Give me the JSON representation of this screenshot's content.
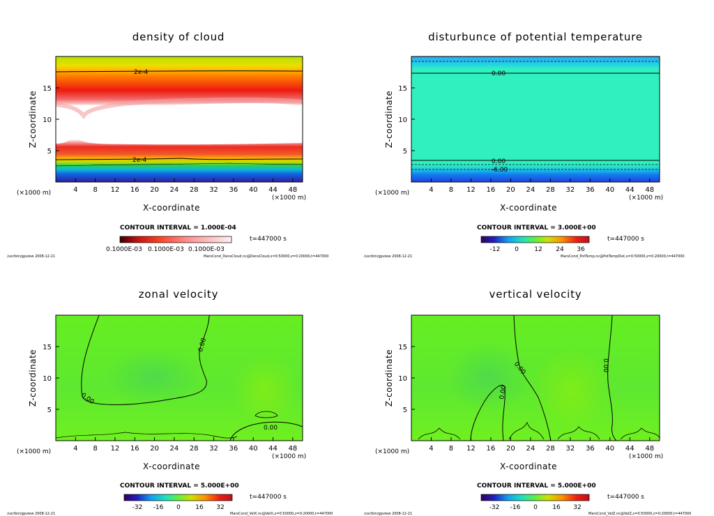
{
  "chart_data": [
    {
      "type": "heatmap",
      "title": "density of cloud",
      "xlabel": "X-coordinate",
      "ylabel": "Z-coordinate",
      "x_unit": "(×1000 m)",
      "x_ticks": [
        4,
        8,
        12,
        16,
        20,
        24,
        28,
        32,
        36,
        40,
        44,
        48
      ],
      "y_ticks": [
        5,
        10,
        15
      ],
      "xlim": [
        0,
        50
      ],
      "ylim": [
        0,
        20
      ],
      "contour_interval": "CONTOUR INTERVAL = 1.000E-04",
      "contour_labels": [
        "2e-4",
        "2e-4"
      ],
      "colorbar_ticks": "0.1000E-03",
      "time_label": "t=447000 s",
      "footer_left": "/usr/bin/gpview  2008-12-21",
      "footer_right": "MarsCond_DensCloud.nc@DensCloud,x=0:50000,z=0:20000,t=447000"
    },
    {
      "type": "heatmap",
      "title": "disturbunce of potential temperature",
      "xlabel": "X-coordinate",
      "ylabel": "Z-coordinate",
      "x_unit": "(×1000 m)",
      "x_ticks": [
        4,
        8,
        12,
        16,
        20,
        24,
        28,
        32,
        36,
        40,
        44,
        48
      ],
      "y_ticks": [
        5,
        10,
        15
      ],
      "xlim": [
        0,
        50
      ],
      "ylim": [
        0,
        20
      ],
      "contour_interval": "CONTOUR INTERVAL = 3.000E+00",
      "contour_labels": [
        "0.00",
        "0.00",
        "-6.00"
      ],
      "colorbar_ticks": [
        -12,
        0,
        12,
        24,
        36
      ],
      "time_label": "t=447000 s",
      "footer_left": "/usr/bin/gpview  2008-12-21",
      "footer_right": "MarsCond_PotTemp.nc@PotTempDist,x=0:50000,z=0:20000,t=447000"
    },
    {
      "type": "heatmap",
      "title": "zonal velocity",
      "xlabel": "X-coordinate",
      "ylabel": "Z-coordinate",
      "x_unit": "(×1000 m)",
      "x_ticks": [
        4,
        8,
        12,
        16,
        20,
        24,
        28,
        32,
        36,
        40,
        44,
        48
      ],
      "y_ticks": [
        5,
        10,
        15
      ],
      "xlim": [
        0,
        50
      ],
      "ylim": [
        0,
        20
      ],
      "contour_interval": "CONTOUR INTERVAL = 5.000E+00",
      "contour_labels": [
        "0.00",
        "0.00",
        "0.00"
      ],
      "colorbar_ticks": [
        -32,
        -16,
        0,
        16,
        32
      ],
      "time_label": "t=447000 s",
      "footer_left": "/usr/bin/gpview  2008-12-21",
      "footer_right": "MarsCond_VelX.nc@VelX,x=0:50000,z=0:20000,t=447000"
    },
    {
      "type": "heatmap",
      "title": "vertical velocity",
      "xlabel": "X-coordinate",
      "ylabel": "Z-coordinate",
      "x_unit": "(×1000 m)",
      "x_ticks": [
        4,
        8,
        12,
        16,
        20,
        24,
        28,
        32,
        36,
        40,
        44,
        48
      ],
      "y_ticks": [
        5,
        10,
        15
      ],
      "xlim": [
        0,
        50
      ],
      "ylim": [
        0,
        20
      ],
      "contour_interval": "CONTOUR INTERVAL = 5.000E+00",
      "contour_labels": [
        "0.00",
        "0.00",
        "0.00",
        "0.00"
      ],
      "colorbar_ticks": [
        -32,
        -16,
        0,
        16,
        32
      ],
      "time_label": "t=447000 s",
      "footer_left": "/usr/bin/gpview  2008-12-21",
      "footer_right": "MarsCond_VelZ.nc@VelZ,x=0:50000,z=0:20000,t=447000"
    }
  ]
}
